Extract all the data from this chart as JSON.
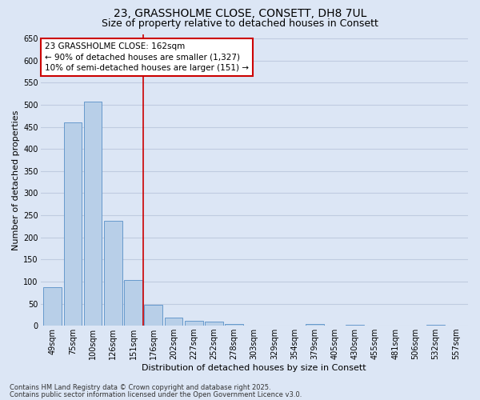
{
  "title1": "23, GRASSHOLME CLOSE, CONSETT, DH8 7UL",
  "title2": "Size of property relative to detached houses in Consett",
  "xlabel": "Distribution of detached houses by size in Consett",
  "ylabel": "Number of detached properties",
  "categories": [
    "49sqm",
    "75sqm",
    "100sqm",
    "126sqm",
    "151sqm",
    "176sqm",
    "202sqm",
    "227sqm",
    "252sqm",
    "278sqm",
    "303sqm",
    "329sqm",
    "354sqm",
    "379sqm",
    "405sqm",
    "430sqm",
    "455sqm",
    "481sqm",
    "506sqm",
    "532sqm",
    "557sqm"
  ],
  "values": [
    88,
    460,
    507,
    238,
    104,
    47,
    18,
    12,
    9,
    4,
    1,
    1,
    1,
    4,
    1,
    3,
    1,
    1,
    1,
    3,
    1
  ],
  "bar_color": "#b8cfe8",
  "bar_edge_color": "#6699cc",
  "vline_color": "#cc0000",
  "vline_index": 4.5,
  "annotation_line1": "23 GRASSHOLME CLOSE: 162sqm",
  "annotation_line2": "← 90% of detached houses are smaller (1,327)",
  "annotation_line3": "10% of semi-detached houses are larger (151) →",
  "annotation_box_color": "#ffffff",
  "annotation_box_edge": "#cc0000",
  "ylim": [
    0,
    660
  ],
  "yticks": [
    0,
    50,
    100,
    150,
    200,
    250,
    300,
    350,
    400,
    450,
    500,
    550,
    600,
    650
  ],
  "grid_color": "#c0cce0",
  "background_color": "#dce6f5",
  "footer1": "Contains HM Land Registry data © Crown copyright and database right 2025.",
  "footer2": "Contains public sector information licensed under the Open Government Licence v3.0.",
  "title1_fontsize": 10,
  "title2_fontsize": 9,
  "axis_label_fontsize": 8,
  "tick_fontsize": 7,
  "annotation_fontsize": 7.5,
  "footer_fontsize": 6
}
